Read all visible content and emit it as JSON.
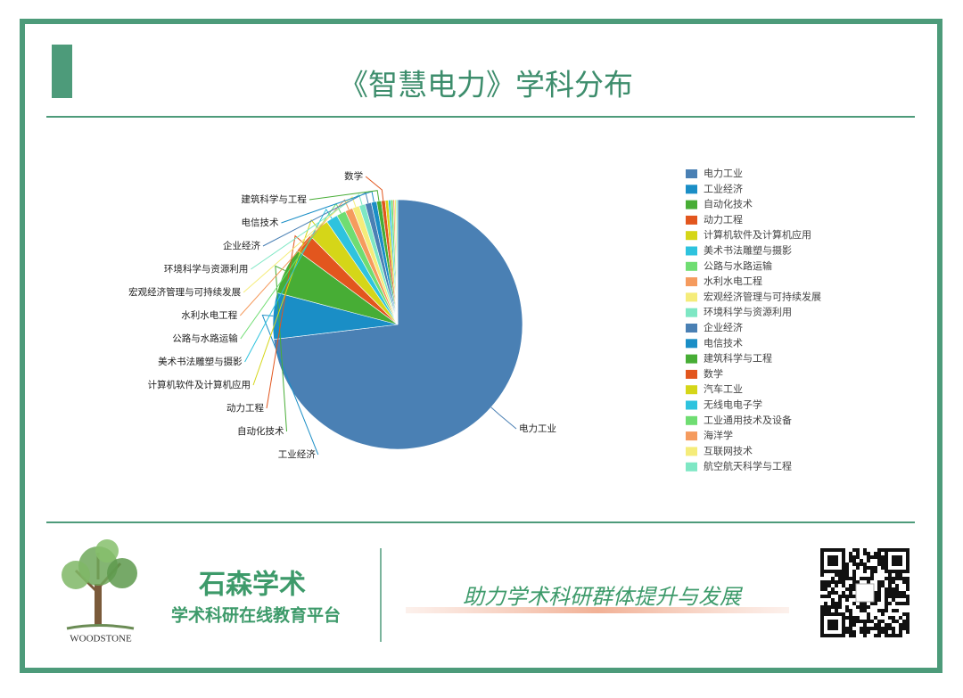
{
  "header": {
    "title": "《智慧电力》学科分布"
  },
  "chart_data": {
    "type": "pie",
    "categories": [
      "电力工业",
      "工业经济",
      "自动化技术",
      "动力工程",
      "计算机软件及计算机应用",
      "美术书法雕塑与摄影",
      "公路与水路运输",
      "水利水电工程",
      "宏观经济管理与可持续发展",
      "环境科学与资源利用",
      "企业经济",
      "电信技术",
      "建筑科学与工程",
      "数学",
      "汽车工业",
      "无线电电子学",
      "工业通用技术及设备",
      "海洋学",
      "互联网技术",
      "航空航天科学与工程"
    ],
    "values": [
      73.1,
      6,
      6,
      2.5,
      2.8,
      1.5,
      1.2,
      1,
      0.9,
      0.8,
      0.8,
      0.7,
      0.6,
      0.5,
      0.4,
      0.3,
      0.3,
      0.2,
      0.2,
      0.2
    ],
    "colors": [
      "#4a80b4",
      "#1a8ec6",
      "#47ad35",
      "#e2561e",
      "#d5d618",
      "#2ec3de",
      "#6fdd72",
      "#f59b5e",
      "#f5ec7a",
      "#7ee7c4"
    ],
    "label_count": 14,
    "legend": "right"
  },
  "footer": {
    "brand": "石森学术",
    "tagline": "学术科研在线教育平台",
    "logo_text": "WOODSTONE",
    "slogan": "助力学术科研群体提升与发展"
  }
}
